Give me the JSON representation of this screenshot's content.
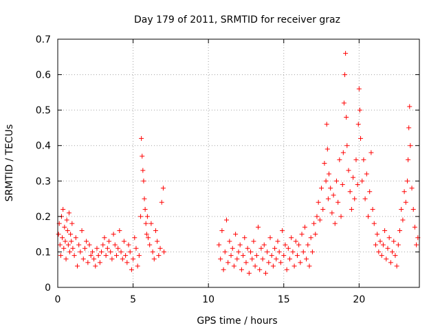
{
  "chart_data": {
    "type": "scatter",
    "title": "Day 179 of 2011, SRMTID for receiver graz",
    "xlabel": "GPS time / hours",
    "ylabel": "SRMTID / TECUs",
    "xlim": [
      0,
      24
    ],
    "ylim": [
      0,
      0.7
    ],
    "xticks": [
      0,
      5,
      10,
      15,
      20
    ],
    "xtick_labels": [
      "0",
      "5",
      "10",
      "15",
      "20"
    ],
    "yticks": [
      0,
      0.1,
      0.2,
      0.3,
      0.4,
      0.5,
      0.6,
      0.7
    ],
    "ytick_labels": [
      "0",
      "0.1",
      "0.2",
      "0.3",
      "0.4",
      "0.5",
      "0.6",
      "0.7"
    ],
    "grid": true,
    "marker": "+",
    "marker_color": "#ff0000",
    "data_gap_hours": [
      7.1,
      10.6
    ],
    "series": [
      {
        "name": "graz",
        "x": [
          0.05,
          0.1,
          0.15,
          0.2,
          0.25,
          0.3,
          0.35,
          0.4,
          0.45,
          0.5,
          0.55,
          0.6,
          0.65,
          0.7,
          0.75,
          0.8,
          0.85,
          0.9,
          0.95,
          1.0,
          1.1,
          1.2,
          1.3,
          1.4,
          1.5,
          1.6,
          1.7,
          1.8,
          1.9,
          2.0,
          2.1,
          2.2,
          2.3,
          2.4,
          2.5,
          2.6,
          2.7,
          2.8,
          2.9,
          3.0,
          3.1,
          3.2,
          3.3,
          3.4,
          3.5,
          3.6,
          3.7,
          3.8,
          3.9,
          4.0,
          4.1,
          4.2,
          4.3,
          4.4,
          4.5,
          4.6,
          4.7,
          4.8,
          4.9,
          5.0,
          5.1,
          5.2,
          5.3,
          5.4,
          5.5,
          5.55,
          5.6,
          5.65,
          5.7,
          5.75,
          5.8,
          5.85,
          5.9,
          5.95,
          6.0,
          6.1,
          6.2,
          6.3,
          6.4,
          6.5,
          6.6,
          6.7,
          6.8,
          6.9,
          7.0,
          7.05,
          10.7,
          10.8,
          10.9,
          11.0,
          11.1,
          11.2,
          11.3,
          11.4,
          11.5,
          11.6,
          11.7,
          11.8,
          11.9,
          12.0,
          12.1,
          12.2,
          12.3,
          12.4,
          12.5,
          12.6,
          12.7,
          12.8,
          12.9,
          13.0,
          13.1,
          13.2,
          13.3,
          13.4,
          13.5,
          13.6,
          13.7,
          13.8,
          13.9,
          14.0,
          14.1,
          14.2,
          14.3,
          14.4,
          14.5,
          14.6,
          14.7,
          14.8,
          14.9,
          15.0,
          15.1,
          15.2,
          15.3,
          15.4,
          15.5,
          15.6,
          15.7,
          15.8,
          15.9,
          16.0,
          16.1,
          16.2,
          16.3,
          16.4,
          16.5,
          16.6,
          16.7,
          16.8,
          16.9,
          17.0,
          17.1,
          17.2,
          17.3,
          17.4,
          17.5,
          17.6,
          17.7,
          17.8,
          17.85,
          17.9,
          17.95,
          18.0,
          18.1,
          18.2,
          18.3,
          18.4,
          18.5,
          18.6,
          18.7,
          18.8,
          18.9,
          18.95,
          19.0,
          19.05,
          19.1,
          19.15,
          19.2,
          19.3,
          19.4,
          19.5,
          19.6,
          19.7,
          19.8,
          19.9,
          19.95,
          20.0,
          20.05,
          20.1,
          20.2,
          20.3,
          20.4,
          20.5,
          20.6,
          20.7,
          20.8,
          20.9,
          21.0,
          21.1,
          21.2,
          21.3,
          21.4,
          21.5,
          21.6,
          21.7,
          21.8,
          21.9,
          22.0,
          22.1,
          22.2,
          22.3,
          22.4,
          22.5,
          22.6,
          22.7,
          22.8,
          22.9,
          23.0,
          23.1,
          23.2,
          23.25,
          23.3,
          23.35,
          23.4,
          23.5,
          23.6,
          23.7,
          23.8,
          23.9
        ],
        "y": [
          0.15,
          0.18,
          0.12,
          0.09,
          0.2,
          0.14,
          0.22,
          0.11,
          0.17,
          0.13,
          0.08,
          0.19,
          0.16,
          0.12,
          0.21,
          0.1,
          0.15,
          0.13,
          0.18,
          0.11,
          0.09,
          0.14,
          0.06,
          0.12,
          0.1,
          0.16,
          0.08,
          0.11,
          0.13,
          0.07,
          0.12,
          0.09,
          0.1,
          0.08,
          0.06,
          0.11,
          0.09,
          0.07,
          0.1,
          0.12,
          0.14,
          0.09,
          0.11,
          0.13,
          0.1,
          0.08,
          0.15,
          0.12,
          0.09,
          0.11,
          0.16,
          0.1,
          0.08,
          0.13,
          0.09,
          0.07,
          0.12,
          0.1,
          0.05,
          0.08,
          0.14,
          0.11,
          0.06,
          0.09,
          0.2,
          0.42,
          0.37,
          0.33,
          0.3,
          0.25,
          0.22,
          0.18,
          0.15,
          0.2,
          0.14,
          0.12,
          0.18,
          0.1,
          0.08,
          0.16,
          0.13,
          0.09,
          0.11,
          0.24,
          0.28,
          0.1,
          0.12,
          0.08,
          0.16,
          0.05,
          0.1,
          0.19,
          0.07,
          0.13,
          0.09,
          0.11,
          0.06,
          0.15,
          0.08,
          0.1,
          0.12,
          0.05,
          0.09,
          0.14,
          0.07,
          0.11,
          0.04,
          0.1,
          0.08,
          0.13,
          0.06,
          0.09,
          0.17,
          0.05,
          0.11,
          0.08,
          0.12,
          0.04,
          0.1,
          0.07,
          0.14,
          0.09,
          0.06,
          0.11,
          0.08,
          0.13,
          0.1,
          0.07,
          0.16,
          0.09,
          0.12,
          0.05,
          0.11,
          0.08,
          0.14,
          0.1,
          0.06,
          0.13,
          0.09,
          0.12,
          0.07,
          0.15,
          0.1,
          0.17,
          0.08,
          0.12,
          0.06,
          0.14,
          0.1,
          0.18,
          0.15,
          0.2,
          0.24,
          0.19,
          0.28,
          0.22,
          0.35,
          0.3,
          0.46,
          0.39,
          0.25,
          0.32,
          0.28,
          0.21,
          0.26,
          0.18,
          0.3,
          0.24,
          0.36,
          0.2,
          0.29,
          0.38,
          0.52,
          0.6,
          0.66,
          0.48,
          0.4,
          0.33,
          0.27,
          0.22,
          0.31,
          0.25,
          0.36,
          0.29,
          0.46,
          0.56,
          0.5,
          0.42,
          0.3,
          0.36,
          0.25,
          0.32,
          0.2,
          0.27,
          0.38,
          0.22,
          0.18,
          0.12,
          0.15,
          0.1,
          0.13,
          0.09,
          0.12,
          0.16,
          0.08,
          0.11,
          0.14,
          0.07,
          0.1,
          0.13,
          0.09,
          0.06,
          0.12,
          0.16,
          0.22,
          0.19,
          0.27,
          0.24,
          0.3,
          0.36,
          0.45,
          0.51,
          0.4,
          0.28,
          0.22,
          0.17,
          0.12,
          0.14
        ]
      }
    ]
  }
}
